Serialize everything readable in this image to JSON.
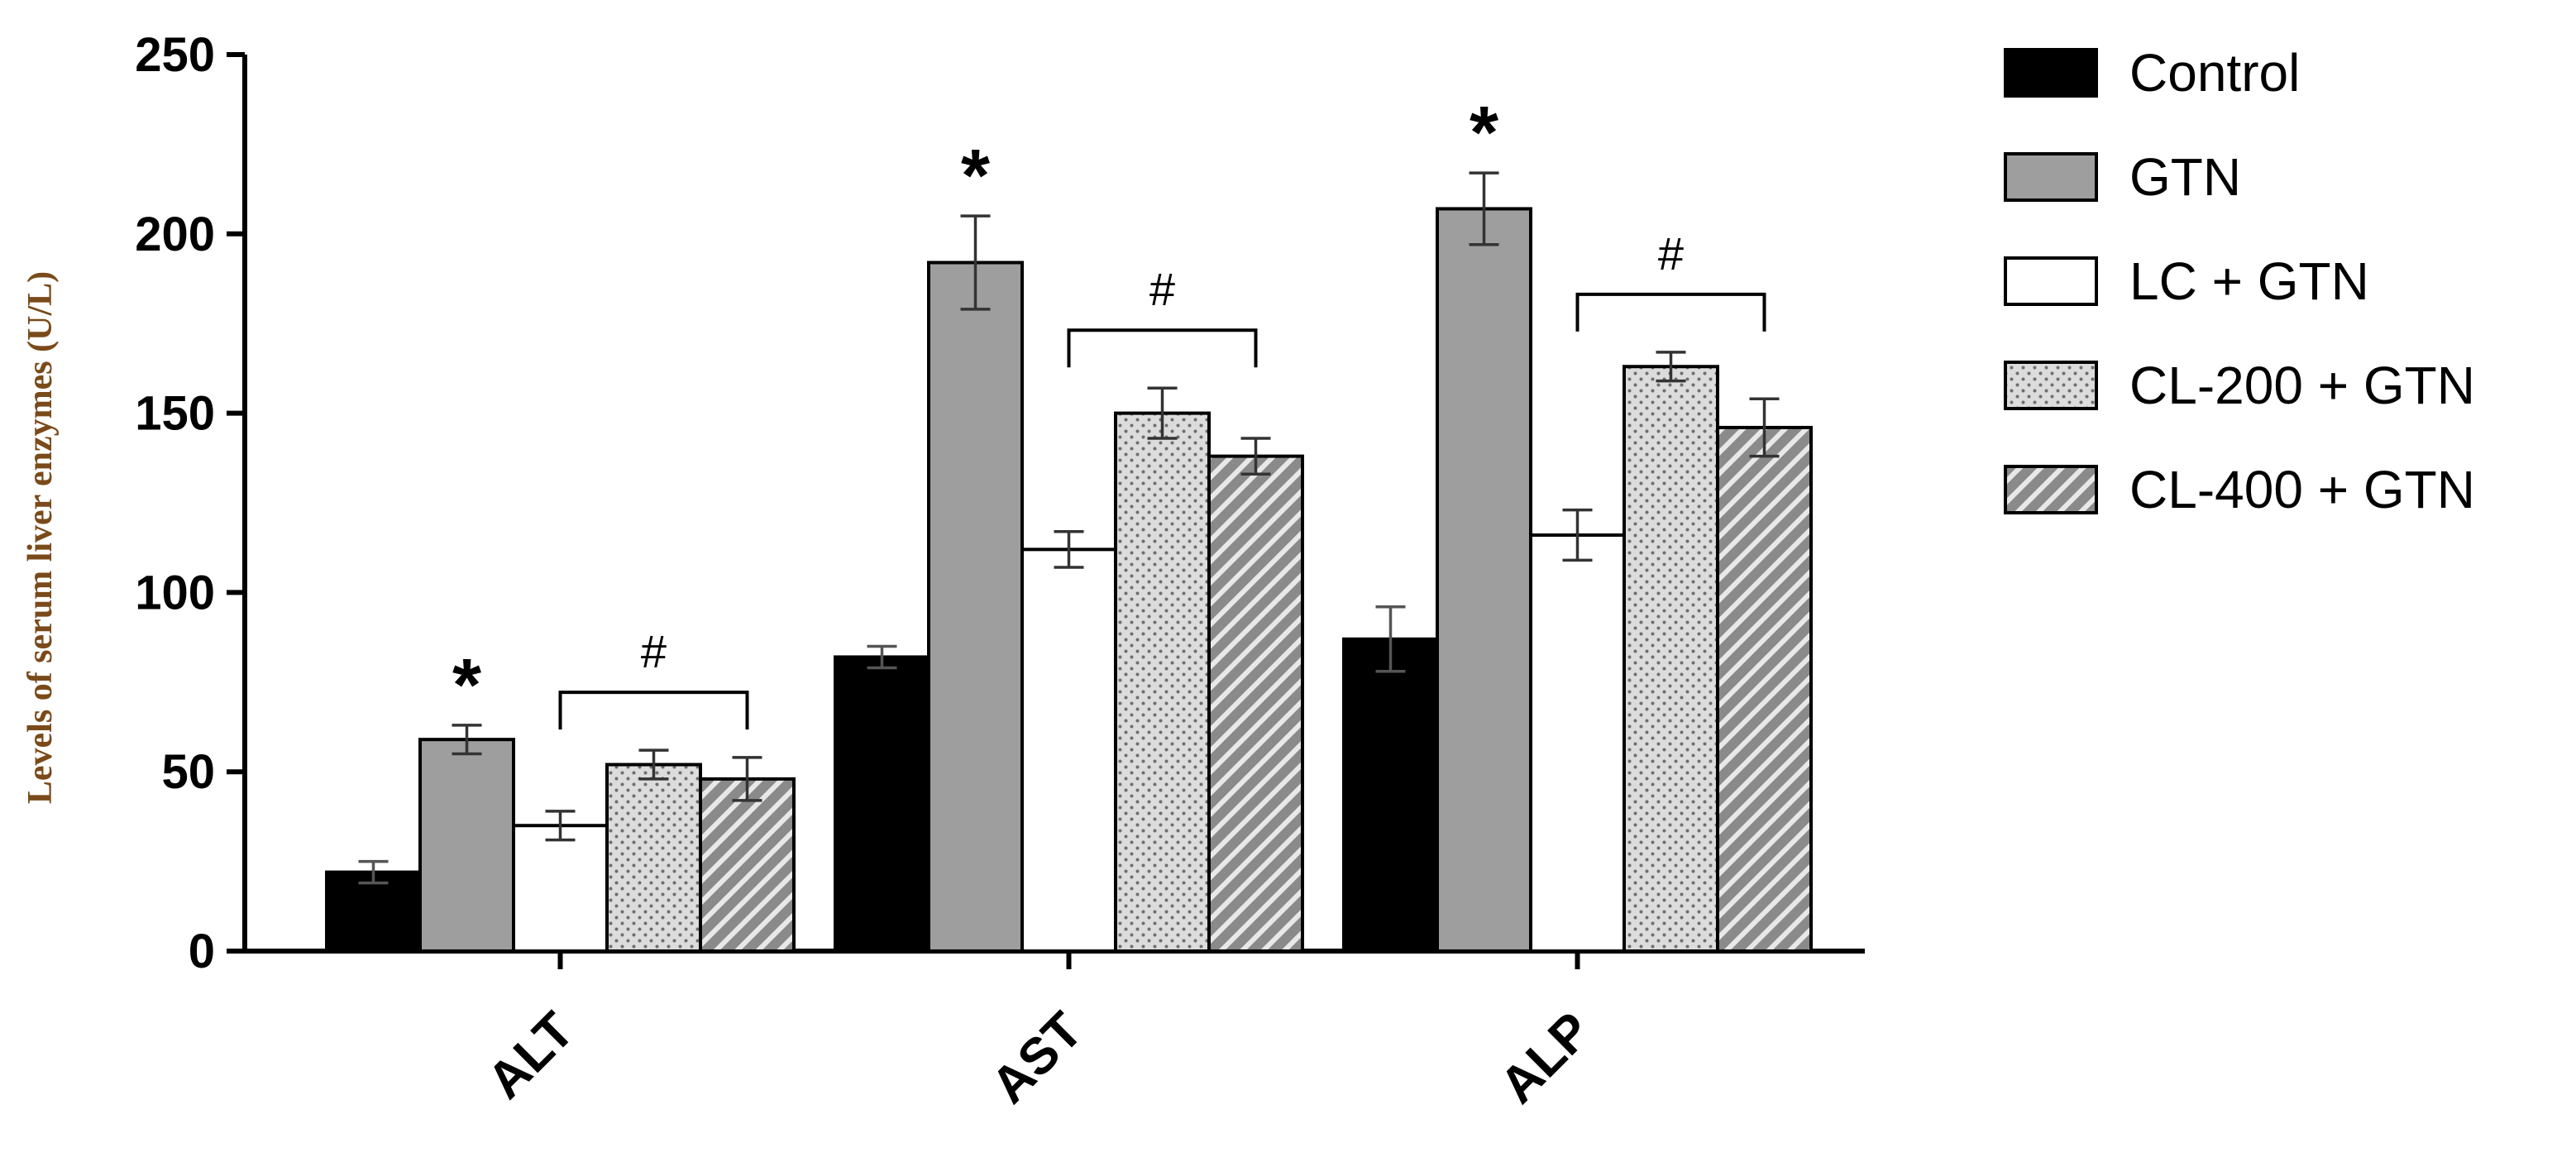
{
  "chart_data": {
    "type": "bar",
    "ylabel": "Levels of serum liver enzymes (U/L)",
    "xlabel": "",
    "ylim": [
      0,
      250
    ],
    "yticks": [
      0,
      50,
      100,
      150,
      200,
      250
    ],
    "categories": [
      "ALT",
      "AST",
      "ALP"
    ],
    "legend_position": "right",
    "series": [
      {
        "name": "Control",
        "values": [
          22,
          82,
          87
        ],
        "errors": [
          3,
          3,
          9
        ],
        "fill": "#000000",
        "pattern": "solid"
      },
      {
        "name": "GTN",
        "values": [
          59,
          192,
          207
        ],
        "errors": [
          4,
          13,
          10
        ],
        "fill": "#9e9e9e",
        "pattern": "solid"
      },
      {
        "name": "LC + GTN",
        "values": [
          35,
          112,
          116
        ],
        "errors": [
          4,
          5,
          7
        ],
        "fill": "#ffffff",
        "pattern": "solid"
      },
      {
        "name": "CL-200 + GTN",
        "values": [
          52,
          150,
          163
        ],
        "errors": [
          4,
          7,
          4
        ],
        "fill": "#d9d9d9",
        "pattern": "dots"
      },
      {
        "name": "CL-400 + GTN",
        "values": [
          48,
          138,
          146
        ],
        "errors": [
          6,
          5,
          8
        ],
        "fill": "#8c8c8c",
        "pattern": "stripes"
      }
    ],
    "annotations": [
      {
        "category": 0,
        "series": 1,
        "symbol": "*"
      },
      {
        "category": 1,
        "series": 1,
        "symbol": "*"
      },
      {
        "category": 2,
        "series": 1,
        "symbol": "*"
      },
      {
        "category": 0,
        "symbol": "#",
        "bracket_from_series": 2,
        "bracket_to_series": 4
      },
      {
        "category": 1,
        "symbol": "#",
        "bracket_from_series": 2,
        "bracket_to_series": 4
      },
      {
        "category": 2,
        "symbol": "#",
        "bracket_from_series": 2,
        "bracket_to_series": 4
      }
    ]
  }
}
